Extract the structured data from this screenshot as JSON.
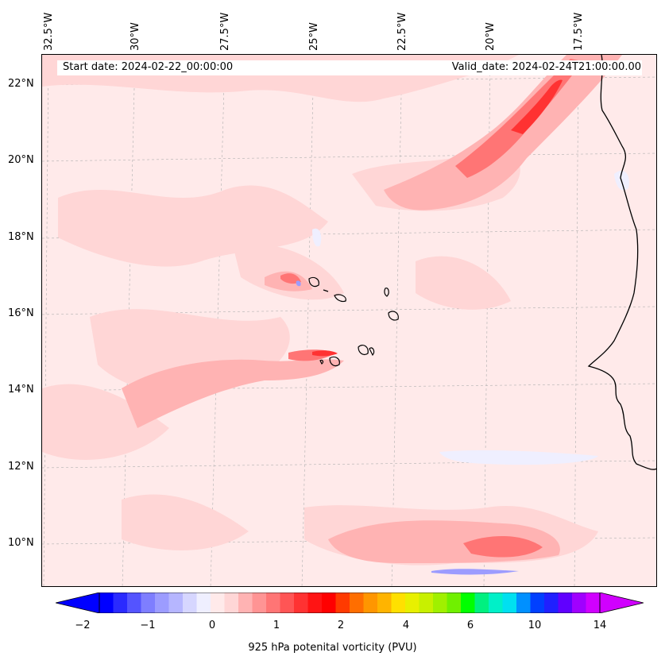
{
  "header": {
    "start_date": "Start date: 2024-02-22_00:00:00",
    "valid_date": "Valid_date: 2024-02-24T21:00:00.00"
  },
  "map": {
    "longitude_labels": [
      "32.5°W",
      "30°W",
      "27.5°W",
      "25°W",
      "22.5°W",
      "20°W",
      "17.5°W"
    ],
    "latitude_labels": [
      "22°N",
      "20°N",
      "18°N",
      "16°N",
      "14°N",
      "12°N",
      "10°N"
    ]
  },
  "colorbar": {
    "title": "925 hPa potenital vorticity (PVU)",
    "tick_labels": [
      "−2",
      "−1",
      "0",
      "1",
      "2",
      "4",
      "6",
      "10",
      "14"
    ],
    "colors": [
      "#0000ff",
      "#2a2aff",
      "#5454ff",
      "#7e7eff",
      "#9c9cff",
      "#b6b6ff",
      "#d6d6ff",
      "#efefff",
      "#ffeaea",
      "#ffd6d6",
      "#ffb3b3",
      "#ff9494",
      "#ff7575",
      "#ff5555",
      "#ff3232",
      "#ff1414",
      "#ff0000",
      "#ff3a00",
      "#ff6e00",
      "#ff9600",
      "#ffb400",
      "#ffe000",
      "#e8f000",
      "#c8f000",
      "#a0f000",
      "#70f000",
      "#00ff00",
      "#00f080",
      "#00f0c8",
      "#00e0f0",
      "#0090ff",
      "#0040ff",
      "#2020ff",
      "#6000ff",
      "#a000ff",
      "#d000ff"
    ]
  }
}
